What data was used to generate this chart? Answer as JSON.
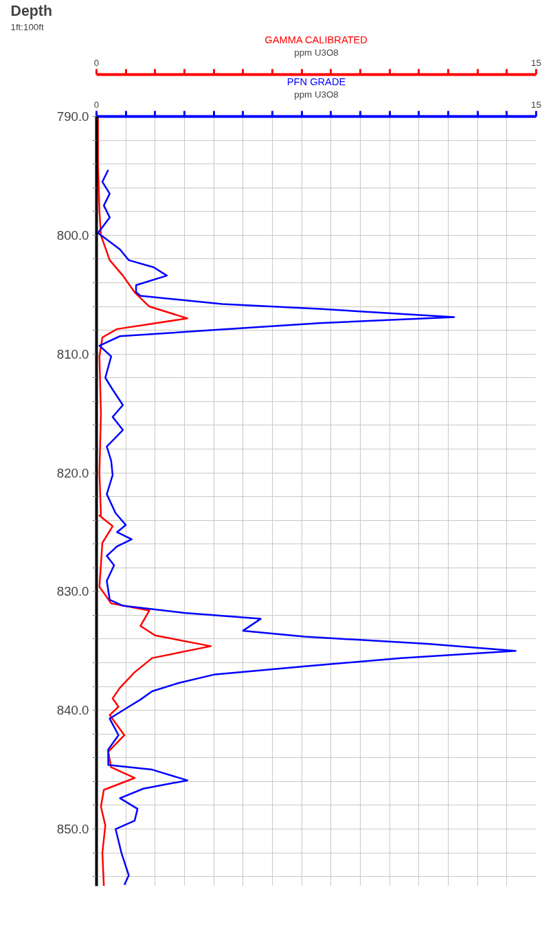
{
  "chart_data": {
    "type": "line",
    "ylabel": "Depth",
    "annotations": [
      "1ft:100ft"
    ],
    "xlabel": "ppm U3O8",
    "x2label": "ppm U3O8",
    "xlim": [
      0,
      15
    ],
    "x2lim": [
      0,
      15
    ],
    "xticks": [
      0,
      {
        "value": 1,
        "label": null
      },
      {
        "value": 2,
        "label": null
      },
      {
        "value": 3,
        "label": null
      },
      {
        "value": 4,
        "label": null
      },
      {
        "value": 5,
        "label": null
      },
      {
        "value": 6,
        "label": null
      },
      {
        "value": 7,
        "label": null
      },
      {
        "value": 8,
        "label": null
      },
      {
        "value": 9,
        "label": null
      },
      {
        "value": 10,
        "label": null
      },
      {
        "value": 11,
        "label": null
      },
      {
        "value": 12,
        "label": null
      },
      {
        "value": 13,
        "label": null
      },
      {
        "value": 14,
        "label": null
      },
      15
    ],
    "x2ticks": [
      0,
      {
        "value": 1,
        "label": null
      },
      {
        "value": 2,
        "label": null
      },
      {
        "value": 3,
        "label": null
      },
      {
        "value": 4,
        "label": null
      },
      {
        "value": 5,
        "label": null
      },
      {
        "value": 6,
        "label": null
      },
      {
        "value": 7,
        "label": null
      },
      {
        "value": 8,
        "label": null
      },
      {
        "value": 9,
        "label": null
      },
      {
        "value": 10,
        "label": null
      },
      {
        "value": 11,
        "label": null
      },
      {
        "value": 12,
        "label": null
      },
      {
        "value": 13,
        "label": null
      },
      {
        "value": 14,
        "label": null
      },
      15
    ],
    "ylim": [
      854.8,
      790
    ],
    "yticks": [
      {
        "value": 790,
        "label": "790.0"
      },
      {
        "value": 792,
        "label": null
      },
      {
        "value": 794,
        "label": null
      },
      {
        "value": 796,
        "label": null
      },
      {
        "value": 798,
        "label": null
      },
      {
        "value": 800,
        "label": "800.0"
      },
      {
        "value": 802,
        "label": null
      },
      {
        "value": 804,
        "label": null
      },
      {
        "value": 806,
        "label": null
      },
      {
        "value": 808,
        "label": null
      },
      {
        "value": 810,
        "label": "810.0"
      },
      {
        "value": 812,
        "label": null
      },
      {
        "value": 814,
        "label": null
      },
      {
        "value": 816,
        "label": null
      },
      {
        "value": 818,
        "label": null
      },
      {
        "value": 820,
        "label": "820.0"
      },
      {
        "value": 822,
        "label": null
      },
      {
        "value": 824,
        "label": null
      },
      {
        "value": 826,
        "label": null
      },
      {
        "value": 828,
        "label": null
      },
      {
        "value": 830,
        "label": "830.0"
      },
      {
        "value": 832,
        "label": null
      },
      {
        "value": 834,
        "label": null
      },
      {
        "value": 836,
        "label": null
      },
      {
        "value": 838,
        "label": null
      },
      {
        "value": 840,
        "label": "840.0"
      },
      {
        "value": 842,
        "label": null
      },
      {
        "value": 844,
        "label": null
      },
      {
        "value": 846,
        "label": null
      },
      {
        "value": 848,
        "label": null
      },
      {
        "value": 850,
        "label": "850.0"
      },
      {
        "value": 852,
        "label": null
      },
      {
        "value": 854,
        "label": null
      }
    ],
    "grid": true,
    "series": [
      {
        "name": "GAMMA CALIBRATED",
        "color": "#ff0000",
        "x": [
          0.05,
          0.05,
          0.1,
          0.15,
          0.45,
          0.9,
          1.3,
          1.8,
          3.1,
          0.7,
          0.2,
          0.1,
          0.15,
          0.1,
          0.15,
          0.1,
          0.55,
          0.2,
          0.1,
          0.1,
          0.5,
          1.8,
          1.5,
          2.0,
          3.9,
          1.9,
          1.3,
          0.8,
          0.55,
          0.75,
          0.45,
          0.95,
          0.4,
          0.5,
          1.3,
          0.25,
          0.15,
          0.3,
          0.2,
          0.25
        ],
        "values": [
          790,
          794,
          798,
          800,
          802.1,
          803.4,
          804.8,
          806,
          807,
          807.9,
          808.6,
          810.2,
          815,
          820,
          823.6,
          823.6,
          824.5,
          825.9,
          829.6,
          829.6,
          831,
          831.6,
          832.9,
          833.7,
          834.6,
          835.6,
          836.8,
          838.1,
          839,
          839.7,
          840.4,
          842.1,
          843.5,
          844.8,
          845.7,
          846.7,
          848.1,
          849.7,
          852,
          854.8
        ]
      },
      {
        "name": "PFN GRADE",
        "color": "#0000ff",
        "axis": "x2",
        "x": [
          0.4,
          0.2,
          0.45,
          0.25,
          0.45,
          0.05,
          0.8,
          1.1,
          1.95,
          2.4,
          1.35,
          1.35,
          1.5,
          4.3,
          7.6,
          12.2,
          7.6,
          3.9,
          0.8,
          0.1,
          0.5,
          0.3,
          0.55,
          0.9,
          0.55,
          0.9,
          0.35,
          0.5,
          0.55,
          0.35,
          0.65,
          1.0,
          0.7,
          1.2,
          0.7,
          0.35,
          0.6,
          0.35,
          0.45,
          0.9,
          3.0,
          5.6,
          5.0,
          7.1,
          11.3,
          14.3,
          10.4,
          7.1,
          4.0,
          2.8,
          1.9,
          1.5,
          1.1,
          0.45,
          0.75,
          0.4,
          0.4,
          1.9,
          3.1,
          1.6,
          0.8,
          1.4,
          1.3,
          0.65,
          0.85,
          1.1,
          0.95
        ],
        "values": [
          794.5,
          795.5,
          796.5,
          797.5,
          798.5,
          799.8,
          801.2,
          802.1,
          802.7,
          803.4,
          804.2,
          804.8,
          805.1,
          805.8,
          806.2,
          806.9,
          807.4,
          808,
          808.5,
          809.3,
          810.2,
          812,
          813,
          814.3,
          815.3,
          816.4,
          817.8,
          819,
          820.2,
          821.8,
          823.4,
          824.4,
          825,
          825.6,
          826.2,
          827,
          827.8,
          829.1,
          830.7,
          831.2,
          831.8,
          832.3,
          833.3,
          833.8,
          834.4,
          835,
          835.6,
          836.3,
          837,
          837.7,
          838.4,
          839.1,
          839.7,
          840.7,
          842.1,
          843.3,
          844.6,
          845,
          845.9,
          846.6,
          847.4,
          848.3,
          849.3,
          850,
          852,
          853.9,
          854.7
        ]
      }
    ]
  }
}
